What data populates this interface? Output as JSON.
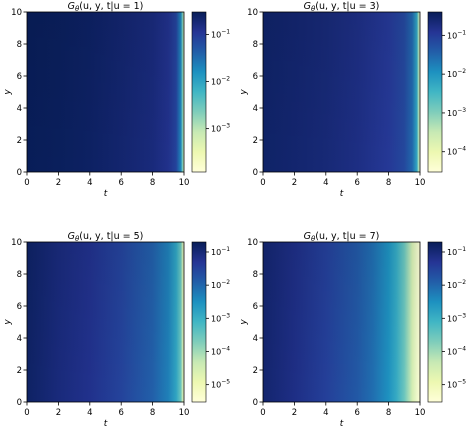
{
  "chart_data": [
    {
      "type": "heatmap",
      "title": "G_θ(u, y, t|u = 1)",
      "title_parts": {
        "prefix": "G",
        "sub": "θ",
        "args": "(u, y, t|u = 1)"
      },
      "xlabel": "t",
      "ylabel": "y",
      "xlim": [
        0,
        10
      ],
      "ylim": [
        0,
        10
      ],
      "x_ticks": [
        "0",
        "2",
        "4",
        "6",
        "8",
        "10"
      ],
      "y_ticks": [
        "0",
        "2",
        "4",
        "6",
        "8",
        "10"
      ],
      "colorbar": {
        "scale": "log",
        "range": [
          0.00012,
          0.3
        ],
        "ticks": [
          {
            "value": 0.1,
            "exp": "−1"
          },
          {
            "value": 0.01,
            "exp": "−2"
          },
          {
            "value": 0.001,
            "exp": "−3"
          }
        ]
      },
      "colormap": "YlGnBu",
      "approx_values": {
        "t": [
          0,
          2,
          4,
          6,
          8,
          9,
          9.5,
          9.8,
          9.9,
          10
        ],
        "G": [
          0.3,
          0.28,
          0.25,
          0.21,
          0.17,
          0.13,
          0.08,
          0.02,
          0.003,
          0.0003
        ]
      }
    },
    {
      "type": "heatmap",
      "title": "G_θ(u, y, t|u = 3)",
      "title_parts": {
        "prefix": "G",
        "sub": "θ",
        "args": "(u, y, t|u = 3)"
      },
      "xlabel": "t",
      "ylabel": "y",
      "xlim": [
        0,
        10
      ],
      "ylim": [
        0,
        10
      ],
      "x_ticks": [
        "0",
        "2",
        "4",
        "6",
        "8",
        "10"
      ],
      "y_ticks": [
        "0",
        "2",
        "4",
        "6",
        "8",
        "10"
      ],
      "colorbar": {
        "scale": "log",
        "range": [
          3e-05,
          0.4
        ],
        "ticks": [
          {
            "value": 0.1,
            "exp": "−1"
          },
          {
            "value": 0.01,
            "exp": "−2"
          },
          {
            "value": 0.001,
            "exp": "−3"
          },
          {
            "value": 0.0001,
            "exp": "−4"
          }
        ]
      },
      "colormap": "YlGnBu",
      "approx_values": {
        "t": [
          0,
          2,
          4,
          6,
          8,
          9,
          9.5,
          9.8,
          9.9,
          10
        ],
        "G": [
          0.3,
          0.26,
          0.22,
          0.17,
          0.11,
          0.07,
          0.03,
          0.006,
          0.0006,
          5e-05
        ]
      }
    },
    {
      "type": "heatmap",
      "title": "G_θ(u, y, t|u = 5)",
      "title_parts": {
        "prefix": "G",
        "sub": "θ",
        "args": "(u, y, t|u = 5)"
      },
      "xlabel": "t",
      "ylabel": "y",
      "xlim": [
        0,
        10
      ],
      "ylim": [
        0,
        10
      ],
      "x_ticks": [
        "0",
        "2",
        "4",
        "6",
        "8",
        "10"
      ],
      "y_ticks": [
        "0",
        "2",
        "4",
        "6",
        "8",
        "10"
      ],
      "colorbar": {
        "scale": "log",
        "range": [
          3e-06,
          0.2
        ],
        "ticks": [
          {
            "value": 0.1,
            "exp": "−1"
          },
          {
            "value": 0.01,
            "exp": "−2"
          },
          {
            "value": 0.001,
            "exp": "−3"
          },
          {
            "value": 0.0001,
            "exp": "−4"
          },
          {
            "value": 1e-05,
            "exp": "−5"
          }
        ]
      },
      "colormap": "YlGnBu",
      "approx_values": {
        "t": [
          0,
          2,
          4,
          6,
          8,
          9,
          9.5,
          9.8,
          9.9,
          10
        ],
        "G": [
          0.15,
          0.09,
          0.06,
          0.03,
          0.012,
          0.005,
          0.0015,
          0.0003,
          5e-05,
          5e-06
        ]
      }
    },
    {
      "type": "heatmap",
      "title": "G_θ(u, y, t|u = 7)",
      "title_parts": {
        "prefix": "G",
        "sub": "θ",
        "args": "(u, y, t|u = 7)"
      },
      "xlabel": "t",
      "ylabel": "y",
      "xlim": [
        0,
        10
      ],
      "ylim": [
        0,
        10
      ],
      "x_ticks": [
        "0",
        "2",
        "4",
        "6",
        "8",
        "10"
      ],
      "y_ticks": [
        "0",
        "2",
        "4",
        "6",
        "8",
        "10"
      ],
      "colorbar": {
        "scale": "log",
        "range": [
          3e-06,
          0.2
        ],
        "ticks": [
          {
            "value": 0.1,
            "exp": "−1"
          },
          {
            "value": 0.01,
            "exp": "−2"
          },
          {
            "value": 0.001,
            "exp": "−3"
          },
          {
            "value": 0.0001,
            "exp": "−4"
          },
          {
            "value": 1e-05,
            "exp": "−5"
          }
        ]
      },
      "colormap": "YlGnBu",
      "approx_values": {
        "t": [
          0,
          2,
          4,
          6,
          7,
          8,
          8.5,
          9,
          9.5,
          10
        ],
        "G": [
          0.12,
          0.07,
          0.035,
          0.015,
          0.008,
          0.003,
          0.0012,
          0.0003,
          3e-05,
          3e-06
        ]
      }
    }
  ]
}
